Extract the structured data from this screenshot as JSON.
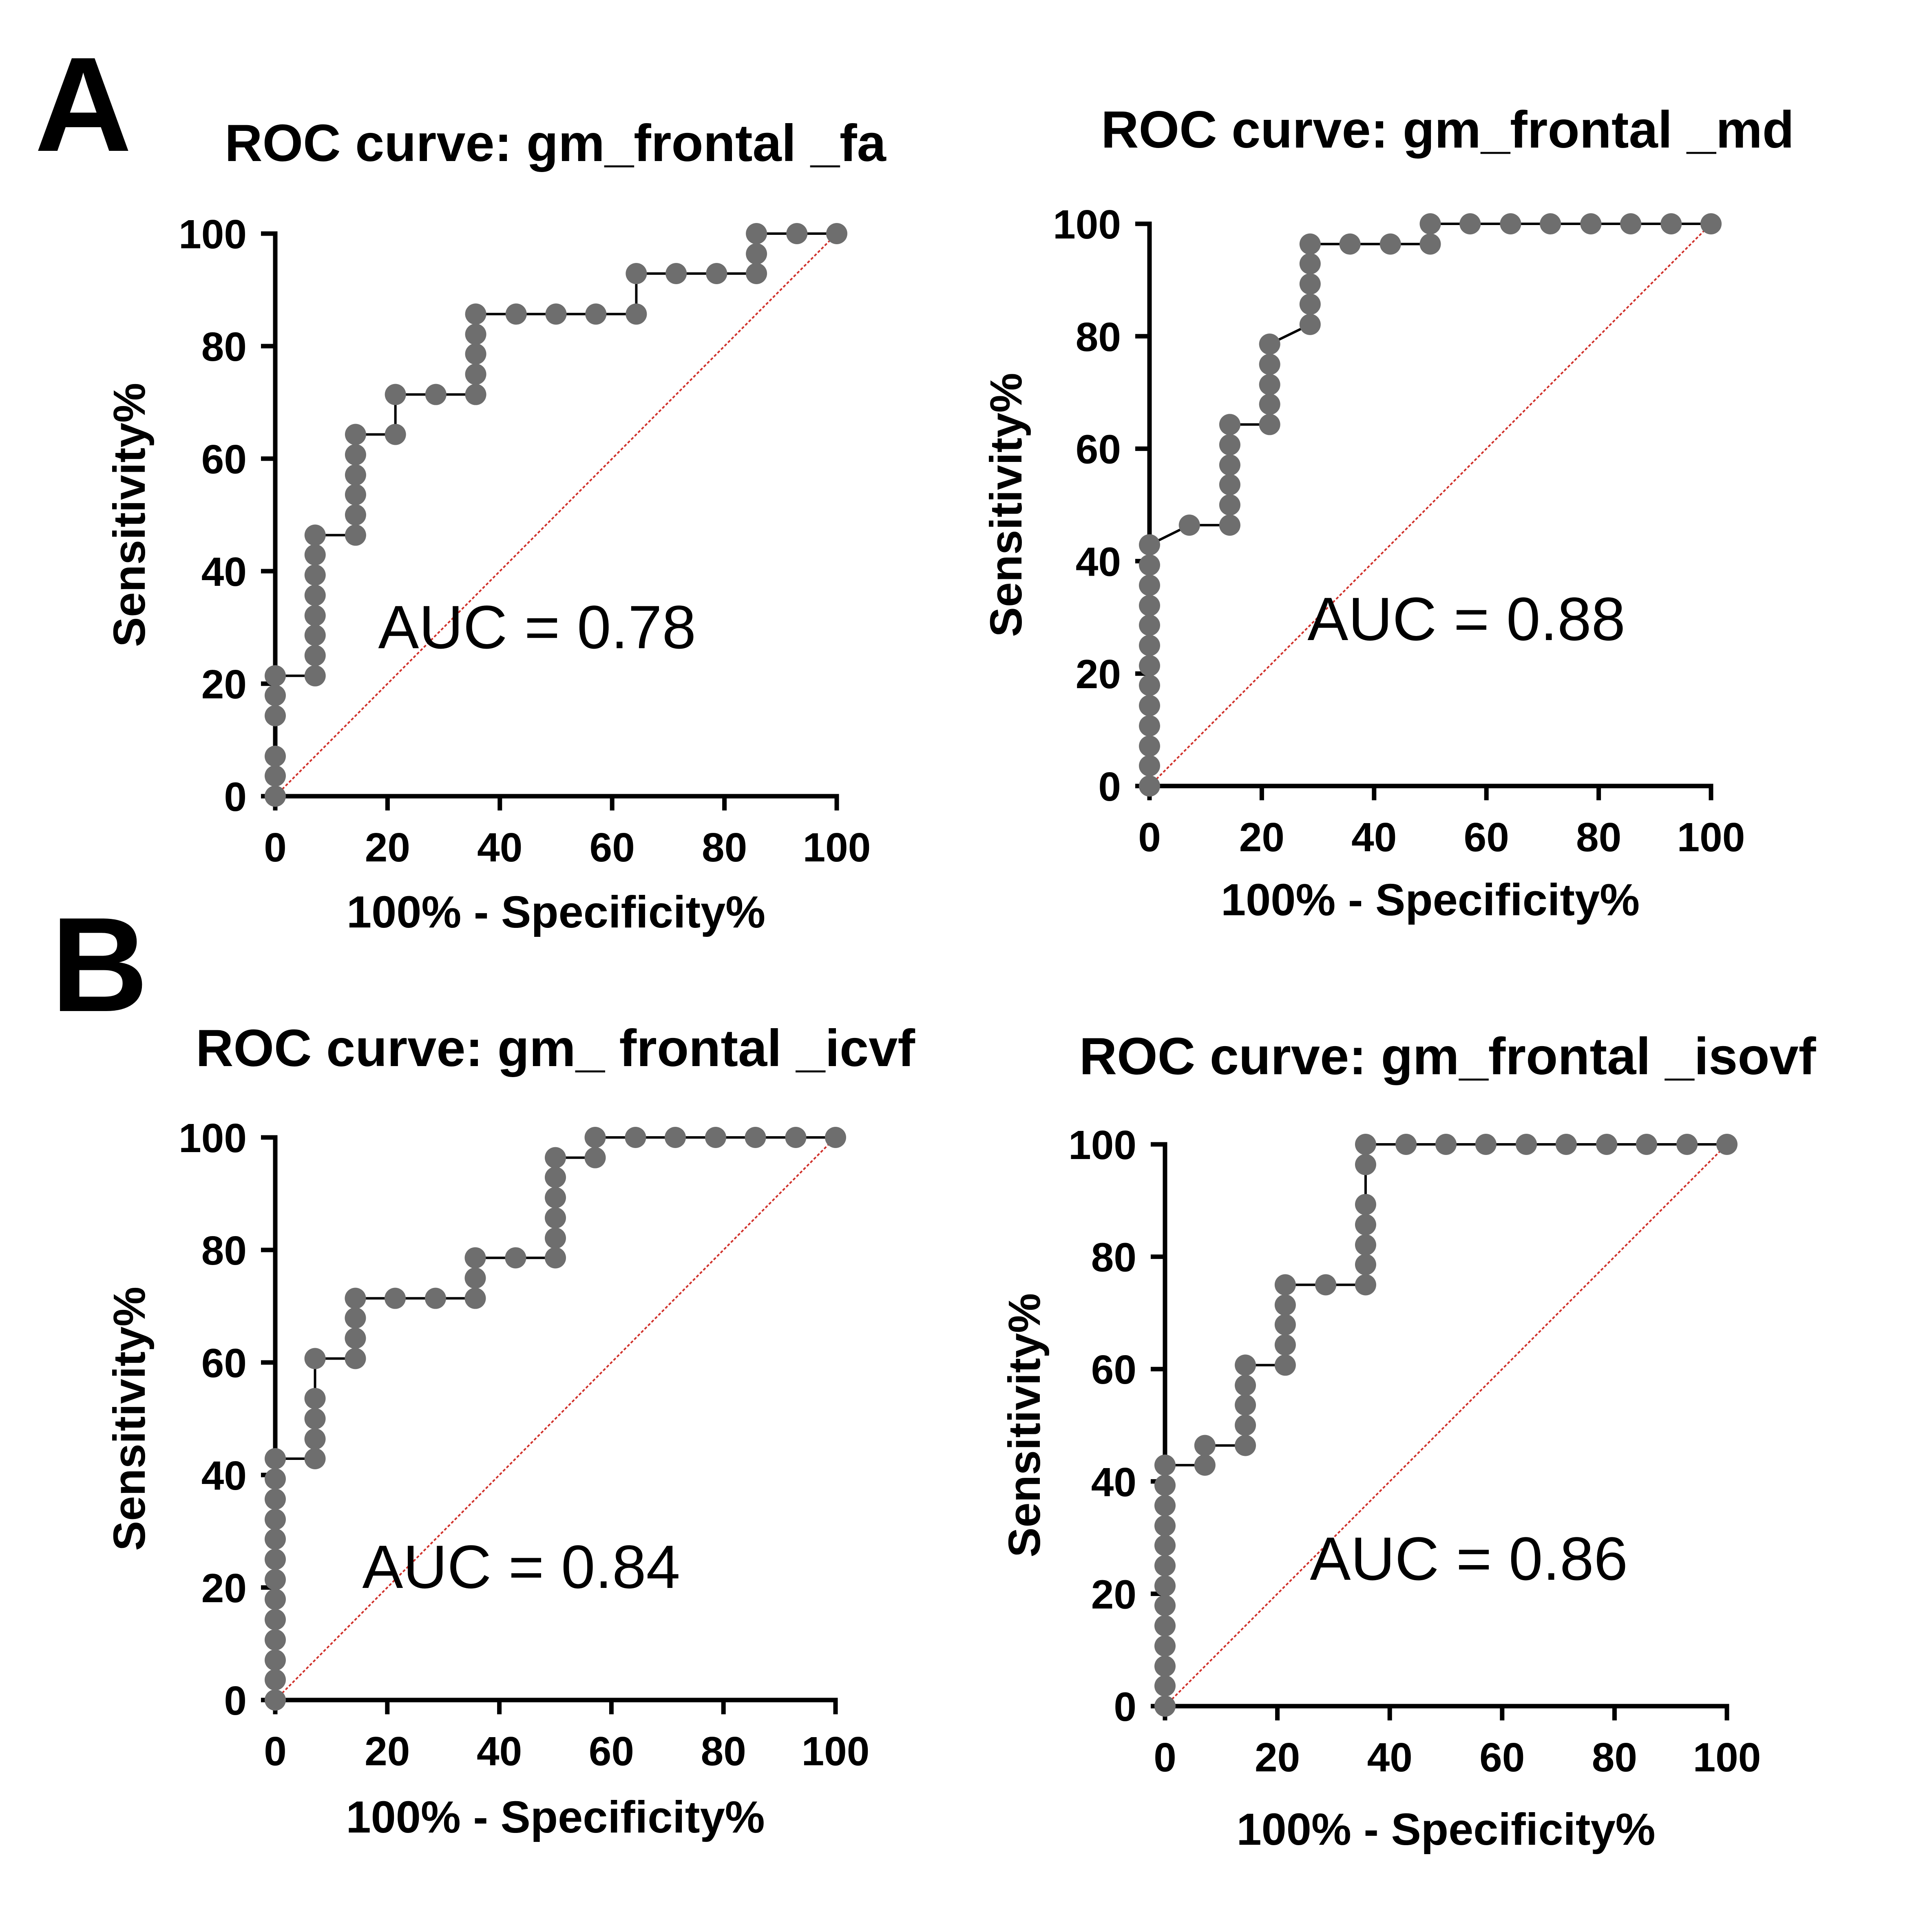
{
  "panel_labels": [
    "A",
    "B"
  ],
  "colors": {
    "curve": "#000000",
    "point": "#6e6e6e",
    "reference": "#d0302a",
    "axis": "#000000"
  },
  "chart_data": [
    {
      "type": "line",
      "title": "ROC curve: gm_frontal _fa",
      "xlabel": "100% - Specificity%",
      "ylabel": "Sensitivity%",
      "annotation": "AUC = 0.78",
      "xlim": [
        0,
        100
      ],
      "ylim": [
        0,
        100
      ],
      "xticks": [
        "0",
        "20",
        "40",
        "60",
        "80",
        "100"
      ],
      "yticks": [
        "0",
        "20",
        "40",
        "60",
        "80",
        "100"
      ],
      "reference_line": [
        [
          0,
          0
        ],
        [
          100,
          100
        ]
      ],
      "x": [
        0,
        0,
        0,
        0,
        0,
        0,
        7.1,
        7.1,
        7.1,
        7.1,
        7.1,
        7.1,
        7.1,
        7.1,
        14.3,
        14.3,
        14.3,
        14.3,
        14.3,
        14.3,
        21.4,
        21.4,
        28.6,
        35.7,
        35.7,
        35.7,
        35.7,
        35.7,
        42.9,
        50,
        57.1,
        64.3,
        64.3,
        71.4,
        78.6,
        85.7,
        85.7,
        85.7,
        92.9,
        100
      ],
      "y": [
        0,
        3.6,
        7.1,
        14.3,
        17.9,
        21.4,
        21.4,
        25,
        28.6,
        32.1,
        35.7,
        39.3,
        42.9,
        46.4,
        46.4,
        50,
        53.6,
        57.1,
        60.7,
        64.3,
        64.3,
        71.4,
        71.4,
        71.4,
        75,
        78.6,
        82.1,
        85.7,
        85.7,
        85.7,
        85.7,
        85.7,
        92.9,
        92.9,
        92.9,
        92.9,
        96.4,
        100,
        100,
        100
      ]
    },
    {
      "type": "line",
      "title": "ROC curve: gm_frontal _md",
      "xlabel": "100% - Specificity%",
      "ylabel": "Sensitivity%",
      "annotation": "AUC = 0.88",
      "xlim": [
        0,
        100
      ],
      "ylim": [
        0,
        100
      ],
      "xticks": [
        "0",
        "20",
        "40",
        "60",
        "80",
        "100"
      ],
      "yticks": [
        "0",
        "20",
        "40",
        "60",
        "80",
        "100"
      ],
      "reference_line": [
        [
          0,
          0
        ],
        [
          100,
          100
        ]
      ],
      "x": [
        0,
        0,
        0,
        0,
        0,
        0,
        0,
        0,
        0,
        0,
        0,
        0,
        0,
        7.1,
        14.3,
        14.3,
        14.3,
        14.3,
        14.3,
        14.3,
        21.4,
        21.4,
        21.4,
        21.4,
        21.4,
        28.6,
        28.6,
        28.6,
        28.6,
        28.6,
        35.7,
        42.9,
        50,
        50,
        57.1,
        64.3,
        71.4,
        78.6,
        85.7,
        92.9,
        100
      ],
      "y": [
        0,
        3.6,
        7.1,
        10.7,
        14.3,
        17.9,
        21.4,
        25,
        28.6,
        32.1,
        35.7,
        39.3,
        42.9,
        46.4,
        46.4,
        50,
        53.6,
        57.1,
        60.7,
        64.3,
        64.3,
        67.9,
        71.4,
        75,
        78.6,
        82.1,
        85.7,
        89.3,
        92.9,
        96.4,
        96.4,
        96.4,
        96.4,
        100,
        100,
        100,
        100,
        100,
        100,
        100,
        100
      ]
    },
    {
      "type": "line",
      "title": "ROC curve: gm_ frontal _icvf",
      "xlabel": "100% - Specificity%",
      "ylabel": "Sensitivity%",
      "annotation": "AUC = 0.84",
      "xlim": [
        0,
        100
      ],
      "ylim": [
        0,
        100
      ],
      "xticks": [
        "0",
        "20",
        "40",
        "60",
        "80",
        "100"
      ],
      "yticks": [
        "0",
        "20",
        "40",
        "60",
        "80",
        "100"
      ],
      "reference_line": [
        [
          0,
          0
        ],
        [
          100,
          100
        ]
      ],
      "x": [
        0,
        0,
        0,
        0,
        0,
        0,
        0,
        0,
        0,
        0,
        0,
        0,
        0,
        7.1,
        7.1,
        7.1,
        7.1,
        7.1,
        14.3,
        14.3,
        14.3,
        14.3,
        21.4,
        28.6,
        35.7,
        35.7,
        35.7,
        42.9,
        50,
        50,
        50,
        50,
        50,
        50,
        57.1,
        57.1,
        64.3,
        71.4,
        78.6,
        85.7,
        92.9,
        100
      ],
      "y": [
        0,
        3.6,
        7.1,
        10.7,
        14.3,
        17.9,
        21.4,
        25,
        28.6,
        32.1,
        35.7,
        39.3,
        42.9,
        42.9,
        46.4,
        50,
        53.6,
        60.7,
        60.7,
        64.3,
        67.9,
        71.4,
        71.4,
        71.4,
        71.4,
        75,
        78.6,
        78.6,
        78.6,
        82.1,
        85.7,
        89.3,
        92.9,
        96.4,
        96.4,
        100,
        100,
        100,
        100,
        100,
        100,
        100
      ]
    },
    {
      "type": "line",
      "title": "ROC curve: gm_frontal _isovf",
      "xlabel": "100% - Specificity%",
      "ylabel": "Sensitivity%",
      "annotation": "AUC = 0.86",
      "xlim": [
        0,
        100
      ],
      "ylim": [
        0,
        100
      ],
      "xticks": [
        "0",
        "20",
        "40",
        "60",
        "80",
        "100"
      ],
      "yticks": [
        "0",
        "20",
        "40",
        "60",
        "80",
        "100"
      ],
      "reference_line": [
        [
          0,
          0
        ],
        [
          100,
          100
        ]
      ],
      "x": [
        0,
        0,
        0,
        0,
        0,
        0,
        0,
        0,
        0,
        0,
        0,
        0,
        0,
        7.1,
        7.1,
        14.3,
        14.3,
        14.3,
        14.3,
        14.3,
        21.4,
        21.4,
        21.4,
        21.4,
        21.4,
        28.6,
        35.7,
        35.7,
        35.7,
        35.7,
        35.7,
        35.7,
        35.7,
        42.9,
        50,
        57.1,
        64.3,
        71.4,
        78.6,
        85.7,
        92.9,
        100
      ],
      "y": [
        0,
        3.6,
        7.1,
        10.7,
        14.3,
        17.9,
        21.4,
        25,
        28.6,
        32.1,
        35.7,
        39.3,
        42.9,
        42.9,
        46.4,
        46.4,
        50,
        53.6,
        57.1,
        60.7,
        60.7,
        64.3,
        67.9,
        71.4,
        75,
        75,
        75,
        78.6,
        82.1,
        85.7,
        89.3,
        96.4,
        100,
        100,
        100,
        100,
        100,
        100,
        100,
        100,
        100,
        100
      ]
    }
  ]
}
